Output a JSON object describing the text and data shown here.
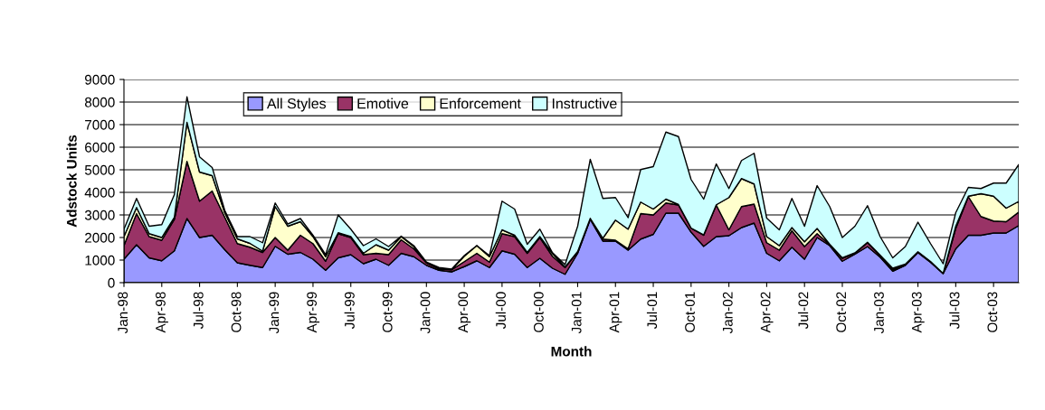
{
  "chart_data": {
    "type": "area",
    "stacked": true,
    "xlabel": "Month",
    "ylabel": "Adstock Units",
    "categories": [
      "Jan-98",
      null,
      null,
      "Apr-98",
      null,
      null,
      "Jul-98",
      null,
      null,
      "Oct-98",
      null,
      null,
      "Jan-99",
      null,
      null,
      "Apr-99",
      null,
      null,
      "Jul-99",
      null,
      null,
      "Oct-99",
      null,
      null,
      "Jan-00",
      null,
      null,
      "Apr-00",
      null,
      null,
      "Jul-00",
      null,
      null,
      "Oct-00",
      null,
      null,
      "Jan-01",
      null,
      null,
      "Apr-01",
      null,
      null,
      "Jul-01",
      null,
      null,
      "Oct-01",
      null,
      null,
      "Jan-02",
      null,
      null,
      "Apr-02",
      null,
      null,
      "Jul-02",
      null,
      null,
      "Oct-02",
      null,
      null,
      "Jan-03",
      null,
      null,
      "Apr-03",
      null,
      null,
      "Jul-03",
      null,
      null,
      "Oct-03",
      null,
      null
    ],
    "series": [
      {
        "name": "All Styles",
        "color": "#9999ff",
        "values": [
          1040,
          1680,
          1100,
          970,
          1410,
          2840,
          2000,
          2100,
          1460,
          880,
          770,
          670,
          1610,
          1260,
          1340,
          1040,
          550,
          1100,
          1240,
          840,
          1040,
          770,
          1300,
          1150,
          770,
          550,
          480,
          710,
          970,
          670,
          1410,
          1260,
          670,
          1080,
          640,
          370,
          1300,
          2800,
          1840,
          1840,
          1440,
          1930,
          2140,
          3080,
          3080,
          2240,
          1610,
          2040,
          2080,
          2440,
          2640,
          1300,
          970,
          1570,
          1040,
          2000,
          1640,
          950,
          1260,
          1600,
          1130,
          510,
          770,
          1330,
          900,
          400,
          1500,
          2100,
          2100,
          2200,
          2200,
          2530
        ]
      },
      {
        "name": "Emotive",
        "color": "#993366",
        "values": [
          600,
          1380,
          940,
          910,
          1390,
          2530,
          1610,
          1960,
          1440,
          850,
          800,
          670,
          390,
          180,
          760,
          690,
          400,
          1070,
          760,
          400,
          260,
          470,
          600,
          350,
          110,
          60,
          90,
          220,
          330,
          240,
          760,
          780,
          630,
          920,
          530,
          300,
          70,
          40,
          90,
          40,
          60,
          1130,
          860,
          450,
          360,
          170,
          490,
          1400,
          260,
          930,
          840,
          470,
          470,
          730,
          560,
          170,
          40,
          130,
          40,
          170,
          70,
          60,
          40,
          40,
          30,
          10,
          900,
          1710,
          830,
          530,
          500,
          600
        ]
      },
      {
        "name": "Enforcement",
        "color": "#ffffcc",
        "values": [
          400,
          270,
          130,
          120,
          100,
          1730,
          1290,
          680,
          200,
          210,
          170,
          60,
          1370,
          1060,
          600,
          310,
          200,
          40,
          40,
          60,
          380,
          200,
          140,
          100,
          0,
          10,
          10,
          240,
          340,
          240,
          170,
          60,
          40,
          40,
          130,
          20,
          10,
          10,
          40,
          890,
          870,
          510,
          260,
          170,
          20,
          10,
          20,
          10,
          1430,
          1240,
          890,
          270,
          200,
          140,
          210,
          230,
          20,
          20,
          20,
          20,
          20,
          70,
          10,
          0,
          10,
          0,
          100,
          20,
          1010,
          1100,
          600,
          470
        ]
      },
      {
        "name": "Instructive",
        "color": "#ccffff",
        "values": [
          330,
          400,
          330,
          570,
          1000,
          1130,
          670,
          360,
          100,
          100,
          300,
          370,
          160,
          100,
          140,
          60,
          90,
          790,
          330,
          340,
          260,
          160,
          20,
          40,
          30,
          50,
          20,
          30,
          0,
          50,
          1270,
          1160,
          360,
          330,
          30,
          110,
          1120,
          2610,
          1760,
          1000,
          510,
          1440,
          1880,
          2970,
          3010,
          2150,
          1580,
          1810,
          400,
          800,
          1360,
          820,
          700,
          1290,
          690,
          1900,
          1670,
          900,
          1180,
          1620,
          820,
          460,
          780,
          1310,
          790,
          430,
          600,
          390,
          230,
          580,
          1110,
          1630
        ]
      }
    ],
    "ylim": [
      0,
      9000
    ],
    "yticks": [
      0,
      1000,
      2000,
      3000,
      4000,
      5000,
      6000,
      7000,
      8000,
      9000
    ],
    "grid": "y",
    "legend": "top"
  }
}
